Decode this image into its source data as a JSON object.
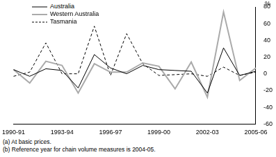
{
  "chart_data": {
    "type": "line",
    "y_label": "%",
    "annotations": [
      "(a) At basic prices.",
      "(b) Reference year for chain volume measures is 2004-05."
    ],
    "categories": [
      "1990-91",
      null,
      null,
      "1993-94",
      null,
      null,
      "1996-97",
      null,
      null,
      "1999-00",
      null,
      null,
      "2002-03",
      null,
      null,
      "2005-06"
    ],
    "series": [
      {
        "name": "Australia",
        "color": "#000000",
        "line_style": "solid",
        "values": [
          5,
          -3,
          6,
          4,
          -17,
          23,
          7,
          0,
          10,
          5,
          4,
          3,
          -23,
          31,
          -2,
          3
        ]
      },
      {
        "name": "Western Australia",
        "color": "#aaaaaa",
        "line_style": "solid",
        "values": [
          5,
          -11,
          15,
          10,
          -23,
          12,
          2,
          2,
          13,
          9,
          -18,
          14,
          -28,
          74,
          -8,
          7
        ]
      },
      {
        "name": "Tasmania",
        "color": "#000000",
        "line_style": "dashed",
        "values": [
          -3,
          2,
          37,
          0,
          0,
          57,
          -2,
          48,
          12,
          -2,
          -1,
          0,
          -3,
          8,
          -2,
          2
        ]
      }
    ],
    "ylim": [
      -60,
      80
    ],
    "yticks": [
      -60,
      -40,
      -20,
      0,
      20,
      40,
      60,
      80
    ],
    "grid": false,
    "legend": "top-left"
  }
}
